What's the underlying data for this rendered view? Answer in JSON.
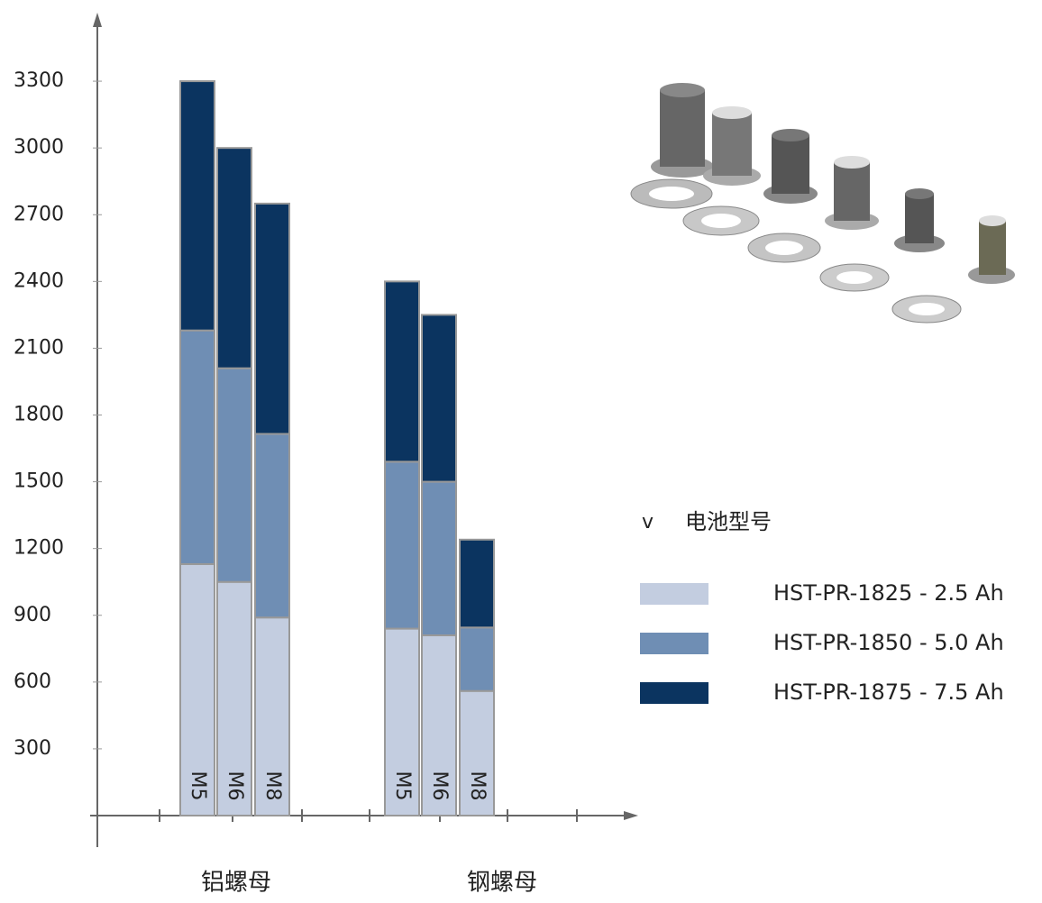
{
  "chart_data": {
    "type": "stacked-bar",
    "categories": [
      "M5",
      "M6",
      "M8",
      "M5",
      "M6",
      "M8"
    ],
    "group_labels": [
      "铝螺母",
      "钢螺母"
    ],
    "legend_prefix": "v",
    "legend_title": "电池型号",
    "series": [
      {
        "name": "HST-PR-1825 - 2.5 Ah",
        "color": "#c3cde0",
        "values": [
          1130,
          1050,
          890,
          840,
          810,
          560
        ]
      },
      {
        "name": "HST-PR-1850 - 5.0 Ah",
        "color": "#6f8eb4",
        "values": [
          1050,
          960,
          825,
          750,
          690,
          285
        ]
      },
      {
        "name": "HST-PR-1875 - 7.5 Ah",
        "color": "#0b3460",
        "values": [
          1120,
          990,
          1035,
          810,
          750,
          395
        ]
      }
    ],
    "ylim": [
      0,
      3600
    ],
    "yticks": [
      300,
      600,
      900,
      1200,
      1500,
      1800,
      2100,
      2400,
      2700,
      3000,
      3300
    ]
  }
}
